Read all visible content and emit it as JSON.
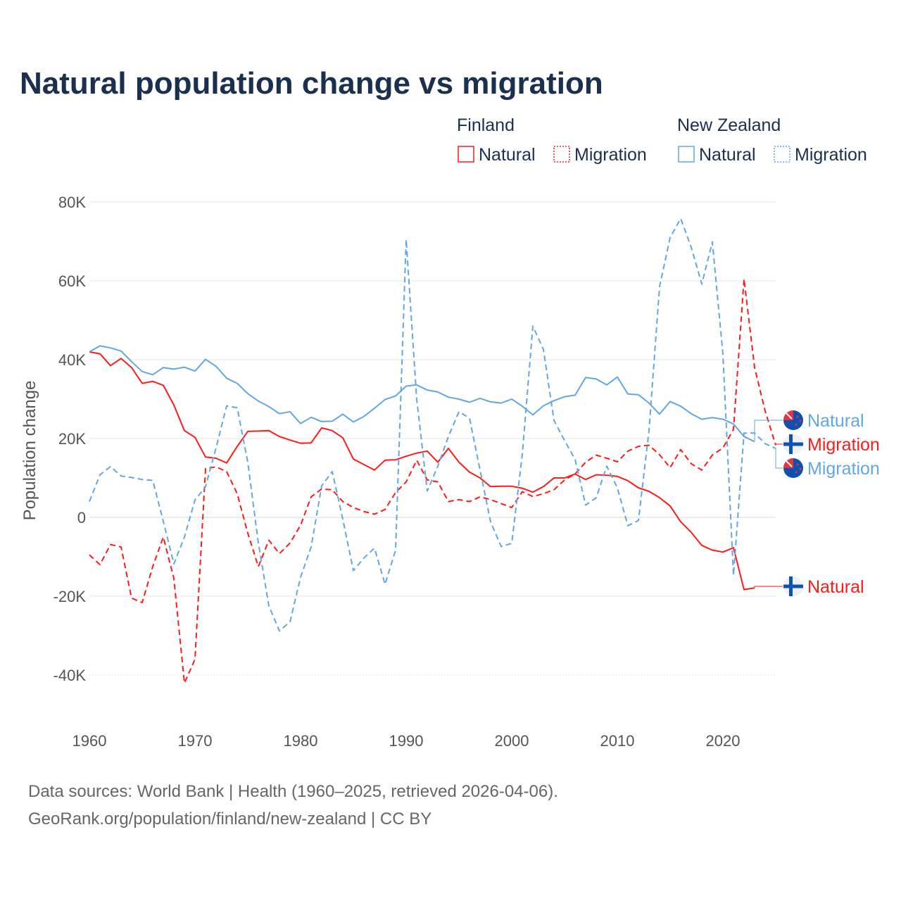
{
  "chart_data": {
    "type": "line",
    "title": "Natural population change vs migration",
    "xlabel": "",
    "ylabel": "Population change",
    "xlim": [
      1960,
      2025
    ],
    "ylim": [
      -40000,
      80000
    ],
    "x_ticks": [
      "1960",
      "1970",
      "1980",
      "1990",
      "2000",
      "2010",
      "2020"
    ],
    "y_ticks": [
      "80K",
      "60K",
      "40K",
      "20K",
      "0",
      "-20K",
      "-40K"
    ],
    "y_tick_values": [
      80000,
      60000,
      40000,
      20000,
      0,
      -20000,
      -40000
    ],
    "grid": true,
    "legend_placement": "top-right",
    "legend": {
      "groups": [
        {
          "country": "Finland",
          "items": [
            "Natural",
            "Migration"
          ]
        },
        {
          "country": "New Zealand",
          "items": [
            "Natural",
            "Migration"
          ]
        }
      ]
    },
    "colors": {
      "Finland": "#ff1a1a",
      "New Zealand": "#62a6e6"
    },
    "series": [
      {
        "name": "Natural",
        "country": "Finland",
        "style": "solid",
        "start_year": 1960,
        "values_k": [
          42,
          41.5,
          38.5,
          40.3,
          38,
          34,
          34.5,
          33.5,
          28.5,
          22,
          20.3,
          15.3,
          15,
          13.8,
          18,
          21.8,
          21.9,
          22,
          20.5,
          19.6,
          18.8,
          18.9,
          22.7,
          22,
          20.2,
          14.8,
          13.4,
          12,
          14.5,
          14.6,
          15.5,
          16.3,
          16.8,
          14,
          17.5,
          14,
          11.5,
          10,
          7.8,
          7.9,
          7.9,
          7.4,
          6.4,
          7.8,
          10,
          10,
          11,
          9.6,
          10.8,
          10.7,
          10.4,
          9.3,
          7.5,
          6.6,
          5,
          2.9,
          -1.1,
          -3.8,
          -7.1,
          -8.3,
          -8.8,
          -7.7,
          -18.3,
          -17.9
        ]
      },
      {
        "name": "Migration",
        "country": "Finland",
        "style": "dashed",
        "start_year": 1960,
        "values_k": [
          -9.5,
          -12,
          -6.9,
          -7.5,
          -20.5,
          -21.6,
          -12.5,
          -5,
          -15.5,
          -42,
          -36,
          12.4,
          12.8,
          11.6,
          6,
          -4,
          -12.5,
          -5.8,
          -9.2,
          -6.5,
          -2,
          5.2,
          7.2,
          7,
          4,
          2.5,
          1.5,
          0.8,
          2,
          6.3,
          9,
          14.5,
          9.5,
          9,
          4,
          4.5,
          4,
          5.2,
          4.5,
          3.5,
          2.5,
          6.5,
          5.3,
          6,
          7,
          9.5,
          11,
          14,
          15.8,
          15,
          14.1,
          16.8,
          18,
          18.3,
          15.9,
          12.6,
          17.2,
          13.6,
          12,
          15.8,
          17.6,
          22.3,
          60.5,
          38,
          27,
          18.3
        ]
      },
      {
        "name": "Natural",
        "country": "New Zealand",
        "style": "solid",
        "start_year": 1960,
        "values_k": [
          42,
          43.5,
          43,
          42.2,
          39.5,
          37,
          36.2,
          38,
          37.6,
          38.1,
          37.1,
          40.1,
          38.3,
          35.3,
          34,
          31.4,
          29.5,
          28.1,
          26.3,
          26.8,
          23.8,
          25.4,
          24.3,
          24.4,
          26.2,
          24.2,
          25.6,
          27.7,
          29.9,
          30.8,
          33.3,
          33.6,
          32.3,
          31.8,
          30.5,
          30,
          29.2,
          30.2,
          29.3,
          29,
          30,
          28.2,
          26,
          28.3,
          29.6,
          30.6,
          31,
          35.5,
          35.1,
          33.6,
          35.6,
          31.3,
          31.1,
          29,
          26.2,
          29.4,
          28.2,
          26.3,
          24.9,
          25.3,
          24.9,
          23.7,
          20.5,
          19.2
        ]
      },
      {
        "name": "Migration",
        "country": "New Zealand",
        "style": "dashed",
        "start_year": 1960,
        "values_k": [
          4,
          10.8,
          12.9,
          10.5,
          10.1,
          9.6,
          9.4,
          -1,
          -11.8,
          -5,
          4.4,
          7.8,
          17.7,
          28.3,
          27.8,
          14,
          -6.5,
          -22.5,
          -28.8,
          -26.5,
          -15.2,
          -7.5,
          8,
          11.6,
          -0.5,
          -13.5,
          -10.3,
          -7.8,
          -17,
          -8.3,
          70.5,
          30,
          6.7,
          13,
          20.5,
          26.8,
          25.2,
          12,
          -1.2,
          -7.4,
          -6.6,
          16,
          48.5,
          42.6,
          24.6,
          19.5,
          14.7,
          3.1,
          5,
          13,
          7.5,
          -2.1,
          -0.8,
          22,
          58.5,
          71,
          75.8,
          68.5,
          59.2,
          69.9,
          41.4,
          -14.7,
          21.4,
          21.4,
          18.7,
          17.5
        ]
      }
    ],
    "end_labels": [
      "Natural",
      "Migration",
      "Migration",
      "Natural"
    ]
  },
  "footer": {
    "line1": "Data sources: World Bank | Health (1960–2025, retrieved 2026-04-06).",
    "line2": "GeoRank.org/population/finland/new-zealand | CC BY"
  }
}
